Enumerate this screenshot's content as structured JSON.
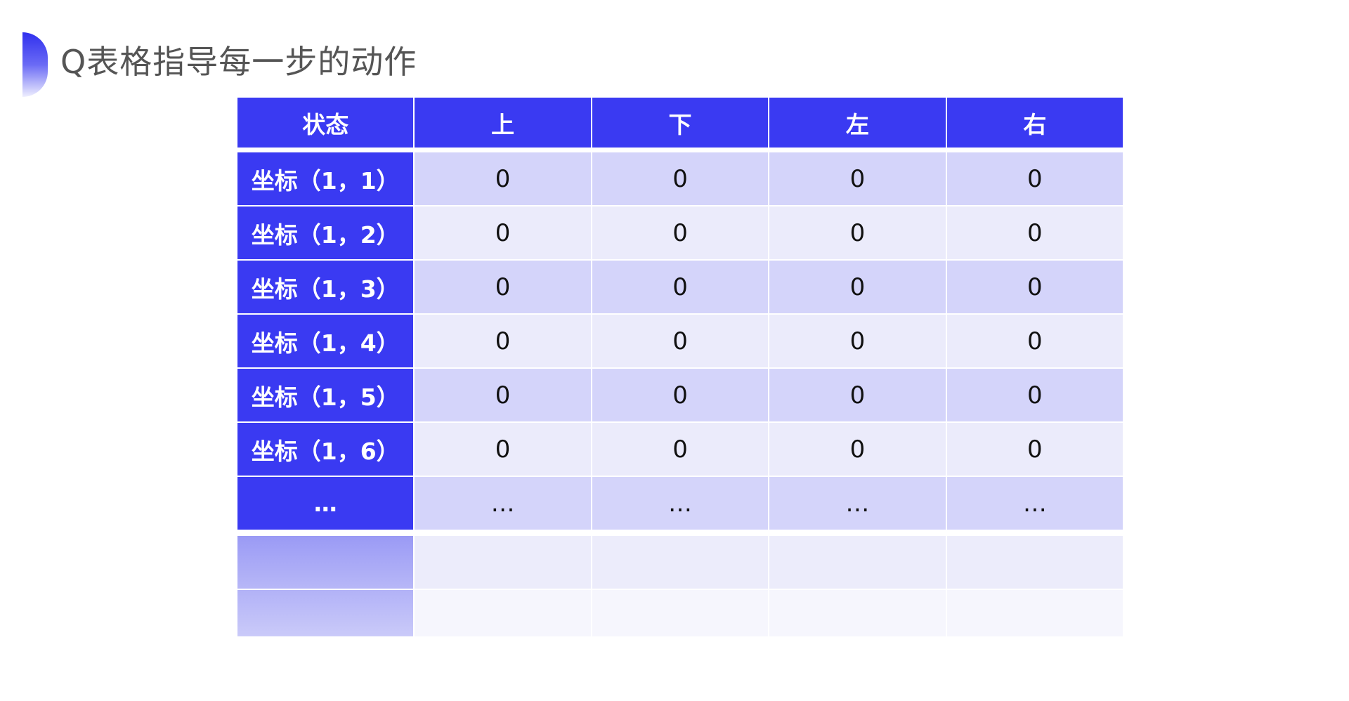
{
  "title": "Q表格指导每一步的动作",
  "table": {
    "headers": [
      "状态",
      "上",
      "下",
      "左",
      "右"
    ],
    "rows": [
      [
        "坐标（1，1）",
        "0",
        "0",
        "0",
        "0"
      ],
      [
        "坐标（1，2）",
        "0",
        "0",
        "0",
        "0"
      ],
      [
        "坐标（1，3）",
        "0",
        "0",
        "0",
        "0"
      ],
      [
        "坐标（1，4）",
        "0",
        "0",
        "0",
        "0"
      ],
      [
        "坐标（1，5）",
        "0",
        "0",
        "0",
        "0"
      ],
      [
        "坐标（1，6）",
        "0",
        "0",
        "0",
        "0"
      ],
      [
        "…",
        "…",
        "…",
        "…",
        "…"
      ]
    ]
  },
  "colors": {
    "header": "#3a3af2",
    "row_a": "#d4d4fa",
    "row_b": "#ebebfb"
  }
}
